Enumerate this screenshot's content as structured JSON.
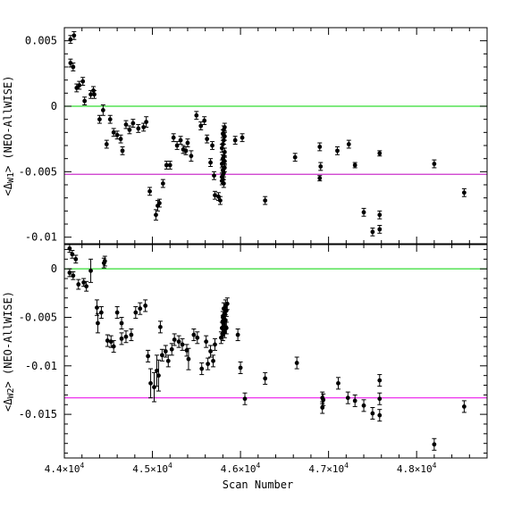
{
  "chart_data": [
    {
      "type": "scatter",
      "xlabel": "Scan Number",
      "ylabel_parts": [
        "<",
        "Δ",
        "W1",
        "> (NEO-AllWISE)"
      ],
      "xlim": [
        44000,
        48800
      ],
      "ylim": [
        -0.0105,
        0.006
      ],
      "x_ticks": [
        {
          "value": 44000,
          "mantissa": "4.4",
          "exp": "4"
        },
        {
          "value": 45000,
          "mantissa": "4.5",
          "exp": "4"
        },
        {
          "value": 46000,
          "mantissa": "4.6",
          "exp": "4"
        },
        {
          "value": 47000,
          "mantissa": "4.7",
          "exp": "4"
        },
        {
          "value": 48000,
          "mantissa": "4.8",
          "exp": "4"
        }
      ],
      "y_ticks": [
        {
          "value": 0.005,
          "label": "0.005"
        },
        {
          "value": 0,
          "label": "0"
        },
        {
          "value": -0.005,
          "label": "-0.005"
        },
        {
          "value": -0.01,
          "label": "-0.01"
        }
      ],
      "hlines": [
        {
          "y": 0,
          "color": "#33dd33"
        },
        {
          "y": -0.0052,
          "color": "#cc33cc"
        }
      ],
      "points": [
        [
          44070,
          0.0051,
          0.0003
        ],
        [
          44110,
          0.0054,
          0.0003
        ],
        [
          44070,
          0.0033,
          0.0003
        ],
        [
          44100,
          0.003,
          0.0003
        ],
        [
          44140,
          0.0014,
          0.0003
        ],
        [
          44170,
          0.0016,
          0.0003
        ],
        [
          44210,
          0.0019,
          0.0003
        ],
        [
          44230,
          0.0004,
          0.0003
        ],
        [
          44300,
          0.0009,
          0.0003
        ],
        [
          44330,
          0.0012,
          0.0003
        ],
        [
          44340,
          0.0009,
          0.0003
        ],
        [
          44400,
          -0.001,
          0.0003
        ],
        [
          44440,
          -0.0003,
          0.0004
        ],
        [
          44480,
          -0.0029,
          0.0003
        ],
        [
          44520,
          -0.001,
          0.0003
        ],
        [
          44560,
          -0.002,
          0.0003
        ],
        [
          44600,
          -0.0022,
          0.0003
        ],
        [
          44640,
          -0.0025,
          0.0003
        ],
        [
          44660,
          -0.0034,
          0.0003
        ],
        [
          44700,
          -0.0014,
          0.0003
        ],
        [
          44740,
          -0.0018,
          0.0003
        ],
        [
          44780,
          -0.0013,
          0.0003
        ],
        [
          44840,
          -0.0017,
          0.0003
        ],
        [
          44900,
          -0.0016,
          0.0003
        ],
        [
          44930,
          -0.0012,
          0.0004
        ],
        [
          44970,
          -0.0065,
          0.0003
        ],
        [
          45040,
          -0.0083,
          0.0004
        ],
        [
          45060,
          -0.0076,
          0.0004
        ],
        [
          45080,
          -0.0074,
          0.0003
        ],
        [
          45120,
          -0.0059,
          0.0003
        ],
        [
          45160,
          -0.0045,
          0.0003
        ],
        [
          45200,
          -0.0045,
          0.0003
        ],
        [
          45240,
          -0.0024,
          0.0003
        ],
        [
          45280,
          -0.003,
          0.0003
        ],
        [
          45320,
          -0.0026,
          0.0003
        ],
        [
          45350,
          -0.0033,
          0.0003
        ],
        [
          45380,
          -0.0034,
          0.0003
        ],
        [
          45400,
          -0.0028,
          0.0003
        ],
        [
          45440,
          -0.0038,
          0.0004
        ],
        [
          45500,
          -0.0007,
          0.0003
        ],
        [
          45550,
          -0.0015,
          0.0003
        ],
        [
          45590,
          -0.0011,
          0.0003
        ],
        [
          45620,
          -0.0025,
          0.0003
        ],
        [
          45660,
          -0.0043,
          0.0003
        ],
        [
          45680,
          -0.003,
          0.0003
        ],
        [
          45700,
          -0.0053,
          0.0003
        ],
        [
          45710,
          -0.0068,
          0.0003
        ],
        [
          45750,
          -0.0069,
          0.0003
        ],
        [
          45770,
          -0.0072,
          0.0003
        ],
        [
          45790,
          -0.0057,
          0.0003
        ],
        [
          45800,
          -0.0056,
          0.0003
        ],
        [
          45810,
          -0.0051,
          0.0003
        ],
        [
          45820,
          -0.0047,
          0.0003
        ],
        [
          45790,
          -0.0044,
          0.0003
        ],
        [
          45800,
          -0.004,
          0.0003
        ],
        [
          45810,
          -0.0038,
          0.0003
        ],
        [
          45820,
          -0.0035,
          0.0003
        ],
        [
          45790,
          -0.0032,
          0.0003
        ],
        [
          45800,
          -0.0029,
          0.0003
        ],
        [
          45810,
          -0.0026,
          0.0003
        ],
        [
          45820,
          -0.0023,
          0.0003
        ],
        [
          45800,
          -0.0021,
          0.0003
        ],
        [
          45810,
          -0.0018,
          0.0003
        ],
        [
          45820,
          -0.0016,
          0.0003
        ],
        [
          45790,
          -0.0054,
          0.0003
        ],
        [
          45810,
          -0.0059,
          0.0003
        ],
        [
          45800,
          -0.0049,
          0.0003
        ],
        [
          45820,
          -0.0042,
          0.0003
        ],
        [
          45940,
          -0.0026,
          0.0003
        ],
        [
          46020,
          -0.0024,
          0.0003
        ],
        [
          46280,
          -0.0072,
          0.0003
        ],
        [
          46620,
          -0.0039,
          0.0003
        ],
        [
          46900,
          -0.0031,
          0.0003
        ],
        [
          46910,
          -0.0046,
          0.0003
        ],
        [
          46900,
          -0.0055,
          0.0002
        ],
        [
          47100,
          -0.0034,
          0.0003
        ],
        [
          47230,
          -0.0029,
          0.0003
        ],
        [
          47300,
          -0.0045,
          0.0002
        ],
        [
          47400,
          -0.0081,
          0.0003
        ],
        [
          47500,
          -0.0096,
          0.0003
        ],
        [
          47580,
          -0.0094,
          0.0003
        ],
        [
          47580,
          -0.0083,
          0.0003
        ],
        [
          47580,
          -0.0036,
          0.0002
        ],
        [
          48200,
          -0.0044,
          0.0003
        ],
        [
          48540,
          -0.0066,
          0.0003
        ]
      ]
    },
    {
      "type": "scatter",
      "xlabel": "Scan Number",
      "ylabel_parts": [
        "<",
        "Δ",
        "W2",
        "> (NEO-AllWISE)"
      ],
      "xlim": [
        44000,
        48800
      ],
      "ylim": [
        -0.0195,
        0.0025
      ],
      "x_ticks": [
        {
          "value": 44000,
          "mantissa": "4.4",
          "exp": "4"
        },
        {
          "value": 45000,
          "mantissa": "4.5",
          "exp": "4"
        },
        {
          "value": 46000,
          "mantissa": "4.6",
          "exp": "4"
        },
        {
          "value": 47000,
          "mantissa": "4.7",
          "exp": "4"
        },
        {
          "value": 48000,
          "mantissa": "4.8",
          "exp": "4"
        }
      ],
      "y_ticks": [
        {
          "value": 0,
          "label": "0"
        },
        {
          "value": -0.005,
          "label": "-0.005"
        },
        {
          "value": -0.01,
          "label": "-0.01"
        },
        {
          "value": -0.015,
          "label": "-0.015"
        }
      ],
      "hlines": [
        {
          "y": 0,
          "color": "#33dd33"
        },
        {
          "y": -0.0133,
          "color": "#ee33ee"
        }
      ],
      "points": [
        [
          44060,
          0.0021,
          0.0004
        ],
        [
          44090,
          0.0015,
          0.0004
        ],
        [
          44130,
          0.001,
          0.0004
        ],
        [
          44060,
          -0.0004,
          0.0004
        ],
        [
          44100,
          -0.0007,
          0.0004
        ],
        [
          44160,
          -0.0016,
          0.0005
        ],
        [
          44220,
          -0.0014,
          0.0004
        ],
        [
          44250,
          -0.0018,
          0.0005
        ],
        [
          44300,
          -0.0002,
          0.0012
        ],
        [
          44370,
          -0.004,
          0.0008
        ],
        [
          44380,
          -0.0056,
          0.001
        ],
        [
          44420,
          -0.0045,
          0.0006
        ],
        [
          44450,
          0.0006,
          0.0005
        ],
        [
          44460,
          0.0008,
          0.0005
        ],
        [
          44490,
          -0.0074,
          0.0006
        ],
        [
          44530,
          -0.0075,
          0.0006
        ],
        [
          44560,
          -0.008,
          0.0006
        ],
        [
          44600,
          -0.0045,
          0.0006
        ],
        [
          44650,
          -0.0056,
          0.0006
        ],
        [
          44650,
          -0.0072,
          0.0006
        ],
        [
          44700,
          -0.007,
          0.0006
        ],
        [
          44760,
          -0.0068,
          0.0006
        ],
        [
          44810,
          -0.0045,
          0.0006
        ],
        [
          44860,
          -0.0041,
          0.0006
        ],
        [
          44920,
          -0.0038,
          0.0006
        ],
        [
          44950,
          -0.009,
          0.0006
        ],
        [
          44980,
          -0.0118,
          0.0015
        ],
        [
          45020,
          -0.0122,
          0.0015
        ],
        [
          45050,
          -0.0105,
          0.0016
        ],
        [
          45070,
          -0.011,
          0.0016
        ],
        [
          45090,
          -0.006,
          0.0006
        ],
        [
          45110,
          -0.0089,
          0.0006
        ],
        [
          45150,
          -0.0085,
          0.0006
        ],
        [
          45180,
          -0.0095,
          0.0006
        ],
        [
          45220,
          -0.0083,
          0.0006
        ],
        [
          45250,
          -0.0073,
          0.0006
        ],
        [
          45300,
          -0.0075,
          0.0006
        ],
        [
          45340,
          -0.0078,
          0.0006
        ],
        [
          45390,
          -0.0084,
          0.0006
        ],
        [
          45410,
          -0.0093,
          0.0011
        ],
        [
          45470,
          -0.0068,
          0.0006
        ],
        [
          45510,
          -0.0071,
          0.0006
        ],
        [
          45560,
          -0.0103,
          0.0006
        ],
        [
          45610,
          -0.0075,
          0.0006
        ],
        [
          45630,
          -0.0098,
          0.0006
        ],
        [
          45660,
          -0.0085,
          0.0006
        ],
        [
          45690,
          -0.0095,
          0.0006
        ],
        [
          45710,
          -0.0078,
          0.0006
        ],
        [
          45780,
          -0.0071,
          0.0006
        ],
        [
          45800,
          -0.0068,
          0.0006
        ],
        [
          45820,
          -0.0065,
          0.0006
        ],
        [
          45790,
          -0.0061,
          0.0006
        ],
        [
          45810,
          -0.0057,
          0.0006
        ],
        [
          45830,
          -0.0053,
          0.0006
        ],
        [
          45800,
          -0.005,
          0.0006
        ],
        [
          45820,
          -0.0046,
          0.0006
        ],
        [
          45840,
          -0.0043,
          0.0006
        ],
        [
          45810,
          -0.0041,
          0.0006
        ],
        [
          45830,
          -0.0038,
          0.0006
        ],
        [
          45850,
          -0.0036,
          0.0006
        ],
        [
          45800,
          -0.0054,
          0.0006
        ],
        [
          45840,
          -0.0061,
          0.0006
        ],
        [
          45970,
          -0.0068,
          0.0006
        ],
        [
          46000,
          -0.0102,
          0.0006
        ],
        [
          46050,
          -0.0134,
          0.0006
        ],
        [
          46280,
          -0.0113,
          0.0006
        ],
        [
          46640,
          -0.0097,
          0.0006
        ],
        [
          46930,
          -0.0133,
          0.0006
        ],
        [
          46940,
          -0.0135,
          0.0006
        ],
        [
          46930,
          -0.0143,
          0.0006
        ],
        [
          47110,
          -0.0118,
          0.0006
        ],
        [
          47220,
          -0.0133,
          0.0006
        ],
        [
          47300,
          -0.0136,
          0.0006
        ],
        [
          47400,
          -0.0141,
          0.0006
        ],
        [
          47500,
          -0.0149,
          0.0006
        ],
        [
          47580,
          -0.0115,
          0.0006
        ],
        [
          47580,
          -0.0134,
          0.0006
        ],
        [
          47580,
          -0.0151,
          0.0006
        ],
        [
          48200,
          -0.0181,
          0.0006
        ],
        [
          48540,
          -0.0142,
          0.0006
        ]
      ]
    }
  ]
}
